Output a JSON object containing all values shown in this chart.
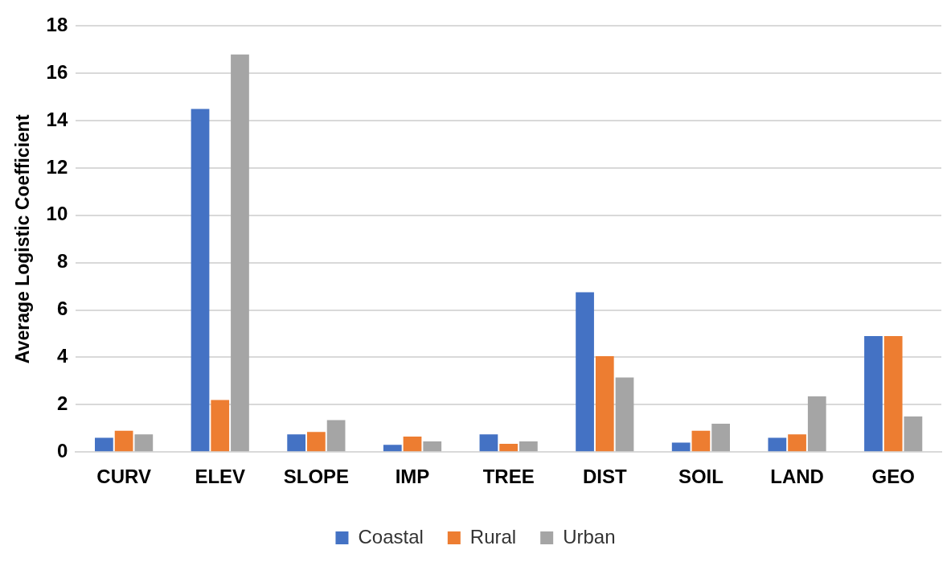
{
  "chart_data": {
    "type": "bar",
    "ylabel": "Average Logistic Coefficient",
    "categories": [
      "CURV",
      "ELEV",
      "SLOPE",
      "IMP",
      "TREE",
      "DIST",
      "SOIL",
      "LAND",
      "GEO"
    ],
    "series": [
      {
        "name": "Coastal",
        "color": "#4472c4",
        "values": [
          0.6,
          14.5,
          0.75,
          0.3,
          0.75,
          6.75,
          0.4,
          0.6,
          4.9
        ]
      },
      {
        "name": "Rural",
        "color": "#ed7d31",
        "values": [
          0.9,
          2.2,
          0.85,
          0.65,
          0.35,
          4.05,
          0.9,
          0.75,
          4.9
        ]
      },
      {
        "name": "Urban",
        "color": "#a5a5a5",
        "values": [
          0.75,
          16.8,
          1.35,
          0.45,
          0.45,
          3.15,
          1.2,
          2.35,
          1.5
        ]
      }
    ],
    "ylim": [
      0,
      18
    ],
    "yticks": [
      0,
      2,
      4,
      6,
      8,
      10,
      12,
      14,
      16,
      18
    ],
    "grid": "y",
    "legend": "bottom"
  }
}
